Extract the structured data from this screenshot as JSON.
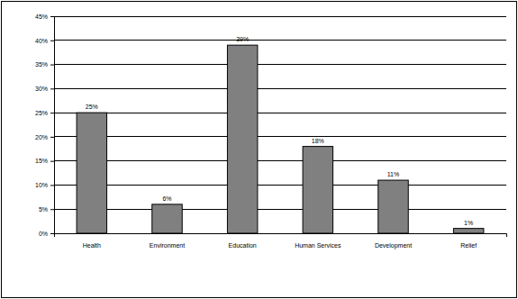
{
  "chart_data": {
    "type": "bar",
    "categories": [
      "Health",
      "Environment",
      "Education",
      "Human Services",
      "Development",
      "Relief"
    ],
    "values": [
      25,
      6,
      39,
      18,
      11,
      1
    ],
    "value_labels": [
      "25%",
      "6%",
      "39%",
      "18%",
      "11%",
      "1%"
    ],
    "color": "#808080",
    "ylim": [
      0,
      45
    ],
    "yticks": [
      {
        "value": 0,
        "label": "0%"
      },
      {
        "value": 5,
        "label": "5%"
      },
      {
        "value": 10,
        "label": "10%"
      },
      {
        "value": 15,
        "label": "15%"
      },
      {
        "value": 20,
        "label": "20%"
      },
      {
        "value": 25,
        "label": "25%"
      },
      {
        "value": 30,
        "label": "30%"
      },
      {
        "value": 35,
        "label": "35%"
      },
      {
        "value": 40,
        "label": "40%"
      },
      {
        "value": 45,
        "label": "45%"
      }
    ],
    "grid": true,
    "data_labels": true
  }
}
